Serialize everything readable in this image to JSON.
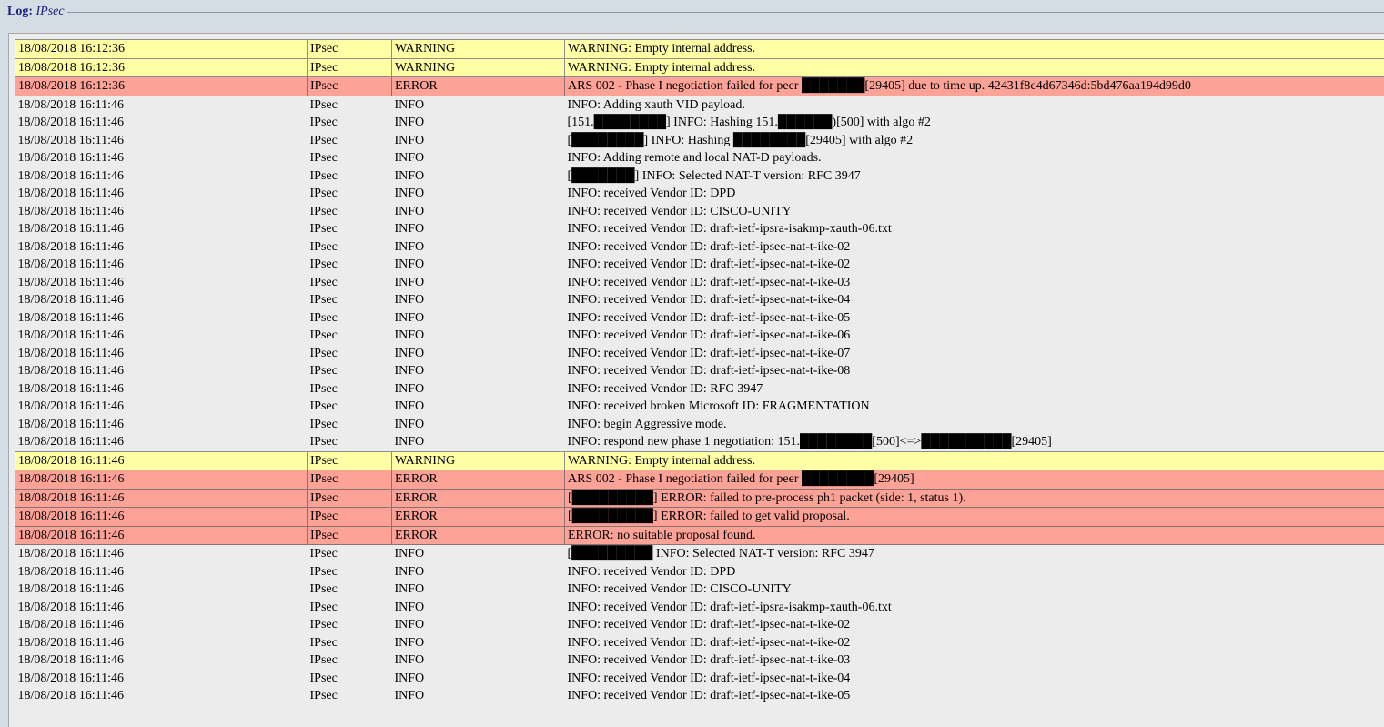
{
  "window": {
    "legend_prefix": "Log:",
    "legend_name": "IPsec"
  },
  "colors": {
    "info_row": "#ececec",
    "warning_row": "#ffffa6",
    "error_row": "#fda297"
  },
  "rows": [
    {
      "time": "18/08/2018 16:12:36",
      "source": "IPsec",
      "level": "WARNING",
      "message": "WARNING: Empty internal address."
    },
    {
      "time": "18/08/2018 16:12:36",
      "source": "IPsec",
      "level": "WARNING",
      "message": "WARNING: Empty internal address."
    },
    {
      "time": "18/08/2018 16:12:36",
      "source": "IPsec",
      "level": "ERROR",
      "message": "ARS 002 - Phase I negotiation failed for peer ███████[29405] due to time up. 42431f8c4d67346d:5bd476aa194d99d0"
    },
    {
      "time": "18/08/2018 16:11:46",
      "source": "IPsec",
      "level": "INFO",
      "message": "INFO: Adding xauth VID payload."
    },
    {
      "time": "18/08/2018 16:11:46",
      "source": "IPsec",
      "level": "INFO",
      "message": "[151.████████] INFO: Hashing 151.██████)[500] with algo #2"
    },
    {
      "time": "18/08/2018 16:11:46",
      "source": "IPsec",
      "level": "INFO",
      "message": "[████████] INFO: Hashing ████████[29405] with algo #2"
    },
    {
      "time": "18/08/2018 16:11:46",
      "source": "IPsec",
      "level": "INFO",
      "message": "INFO: Adding remote and local NAT-D payloads."
    },
    {
      "time": "18/08/2018 16:11:46",
      "source": "IPsec",
      "level": "INFO",
      "message": "[███████] INFO: Selected NAT-T version: RFC 3947"
    },
    {
      "time": "18/08/2018 16:11:46",
      "source": "IPsec",
      "level": "INFO",
      "message": "INFO: received Vendor ID: DPD"
    },
    {
      "time": "18/08/2018 16:11:46",
      "source": "IPsec",
      "level": "INFO",
      "message": "INFO: received Vendor ID: CISCO-UNITY"
    },
    {
      "time": "18/08/2018 16:11:46",
      "source": "IPsec",
      "level": "INFO",
      "message": "INFO: received Vendor ID: draft-ietf-ipsra-isakmp-xauth-06.txt"
    },
    {
      "time": "18/08/2018 16:11:46",
      "source": "IPsec",
      "level": "INFO",
      "message": "INFO: received Vendor ID: draft-ietf-ipsec-nat-t-ike-02"
    },
    {
      "time": "18/08/2018 16:11:46",
      "source": "IPsec",
      "level": "INFO",
      "message": "INFO: received Vendor ID: draft-ietf-ipsec-nat-t-ike-02"
    },
    {
      "time": "18/08/2018 16:11:46",
      "source": "IPsec",
      "level": "INFO",
      "message": "INFO: received Vendor ID: draft-ietf-ipsec-nat-t-ike-03"
    },
    {
      "time": "18/08/2018 16:11:46",
      "source": "IPsec",
      "level": "INFO",
      "message": "INFO: received Vendor ID: draft-ietf-ipsec-nat-t-ike-04"
    },
    {
      "time": "18/08/2018 16:11:46",
      "source": "IPsec",
      "level": "INFO",
      "message": "INFO: received Vendor ID: draft-ietf-ipsec-nat-t-ike-05"
    },
    {
      "time": "18/08/2018 16:11:46",
      "source": "IPsec",
      "level": "INFO",
      "message": "INFO: received Vendor ID: draft-ietf-ipsec-nat-t-ike-06"
    },
    {
      "time": "18/08/2018 16:11:46",
      "source": "IPsec",
      "level": "INFO",
      "message": "INFO: received Vendor ID: draft-ietf-ipsec-nat-t-ike-07"
    },
    {
      "time": "18/08/2018 16:11:46",
      "source": "IPsec",
      "level": "INFO",
      "message": "INFO: received Vendor ID: draft-ietf-ipsec-nat-t-ike-08"
    },
    {
      "time": "18/08/2018 16:11:46",
      "source": "IPsec",
      "level": "INFO",
      "message": "INFO: received Vendor ID: RFC 3947"
    },
    {
      "time": "18/08/2018 16:11:46",
      "source": "IPsec",
      "level": "INFO",
      "message": "INFO: received broken Microsoft ID: FRAGMENTATION"
    },
    {
      "time": "18/08/2018 16:11:46",
      "source": "IPsec",
      "level": "INFO",
      "message": "INFO: begin Aggressive mode."
    },
    {
      "time": "18/08/2018 16:11:46",
      "source": "IPsec",
      "level": "INFO",
      "message": "INFO: respond new phase 1 negotiation: 151.████████[500]<=>██████████[29405]"
    },
    {
      "time": "18/08/2018 16:11:46",
      "source": "IPsec",
      "level": "WARNING",
      "message": "WARNING: Empty internal address."
    },
    {
      "time": "18/08/2018 16:11:46",
      "source": "IPsec",
      "level": "ERROR",
      "message": "ARS 002 - Phase I negotiation failed for peer ████████[29405]"
    },
    {
      "time": "18/08/2018 16:11:46",
      "source": "IPsec",
      "level": "ERROR",
      "message": "[█████████] ERROR: failed to pre-process ph1 packet (side: 1, status 1)."
    },
    {
      "time": "18/08/2018 16:11:46",
      "source": "IPsec",
      "level": "ERROR",
      "message": "[█████████] ERROR: failed to get valid proposal."
    },
    {
      "time": "18/08/2018 16:11:46",
      "source": "IPsec",
      "level": "ERROR",
      "message": "ERROR: no suitable proposal found."
    },
    {
      "time": "18/08/2018 16:11:46",
      "source": "IPsec",
      "level": "INFO",
      "message": "[█████████ INFO: Selected NAT-T version: RFC 3947"
    },
    {
      "time": "18/08/2018 16:11:46",
      "source": "IPsec",
      "level": "INFO",
      "message": "INFO: received Vendor ID: DPD"
    },
    {
      "time": "18/08/2018 16:11:46",
      "source": "IPsec",
      "level": "INFO",
      "message": "INFO: received Vendor ID: CISCO-UNITY"
    },
    {
      "time": "18/08/2018 16:11:46",
      "source": "IPsec",
      "level": "INFO",
      "message": "INFO: received Vendor ID: draft-ietf-ipsra-isakmp-xauth-06.txt"
    },
    {
      "time": "18/08/2018 16:11:46",
      "source": "IPsec",
      "level": "INFO",
      "message": "INFO: received Vendor ID: draft-ietf-ipsec-nat-t-ike-02"
    },
    {
      "time": "18/08/2018 16:11:46",
      "source": "IPsec",
      "level": "INFO",
      "message": "INFO: received Vendor ID: draft-ietf-ipsec-nat-t-ike-02"
    },
    {
      "time": "18/08/2018 16:11:46",
      "source": "IPsec",
      "level": "INFO",
      "message": "INFO: received Vendor ID: draft-ietf-ipsec-nat-t-ike-03"
    },
    {
      "time": "18/08/2018 16:11:46",
      "source": "IPsec",
      "level": "INFO",
      "message": "INFO: received Vendor ID: draft-ietf-ipsec-nat-t-ike-04"
    },
    {
      "time": "18/08/2018 16:11:46",
      "source": "IPsec",
      "level": "INFO",
      "message": "INFO: received Vendor ID: draft-ietf-ipsec-nat-t-ike-05"
    }
  ]
}
